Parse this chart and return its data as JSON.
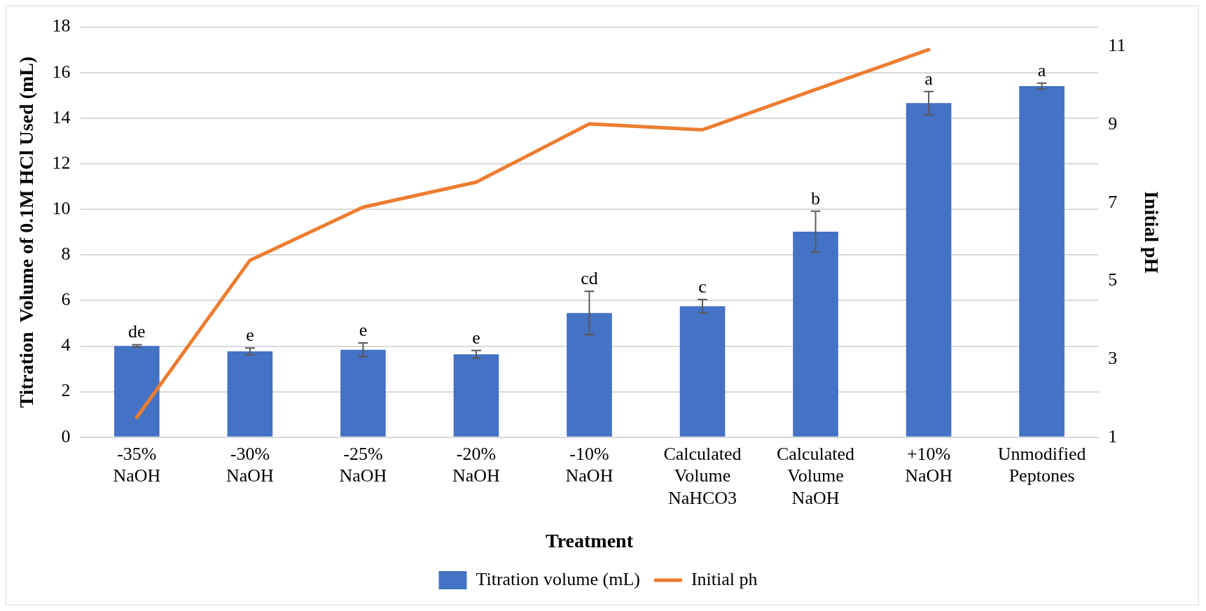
{
  "chart_data": {
    "type": "bar",
    "xlabel": "Treatment",
    "ylabel": "Titration  Volume of 0.1M HCl Used (mL)",
    "y2label": "Initial pH",
    "categories": [
      "-35% NaOH",
      "-30% NaOH",
      "-25% NaOH",
      "-20% NaOH",
      "-10% NaOH",
      "Calculated Volume NaHCO3",
      "Calculated Volume NaOH",
      "+10% NaOH",
      "Unmodified Peptones"
    ],
    "series": [
      {
        "name": "Titration volume (mL)",
        "color": "#4472c4",
        "values": [
          4.01,
          3.77,
          3.84,
          3.64,
          5.45,
          5.75,
          9.02,
          14.66,
          15.41
        ],
        "errors": [
          0.05,
          0.15,
          0.3,
          0.17,
          0.95,
          0.29,
          0.9,
          0.51,
          0.13
        ]
      },
      {
        "name": "Initial ph",
        "type": "line",
        "axis": "y2",
        "color": "#ed7d31",
        "values": [
          1.51,
          5.53,
          6.89,
          7.53,
          9.02,
          8.87,
          9.9,
          10.92,
          null
        ]
      }
    ],
    "ylim": [
      0,
      18
    ],
    "yticks": [
      0,
      2,
      4,
      6,
      8,
      10,
      12,
      14,
      16,
      18
    ],
    "y2lim": [
      1,
      11.5
    ],
    "y2ticks": [
      1,
      3,
      5,
      7,
      9,
      11
    ],
    "annotations": [
      {
        "text": "de",
        "x": "-35% NaOH",
        "y": 4.06
      },
      {
        "text": "e",
        "x": "-30% NaOH",
        "y": 3.92
      },
      {
        "text": "e",
        "x": "-25% NaOH",
        "y": 4.14
      },
      {
        "text": "e",
        "x": "-20% NaOH",
        "y": 3.81
      },
      {
        "text": "cd",
        "x": "-10% NaOH",
        "y": 6.4
      },
      {
        "text": "c",
        "x": "Calculated Volume NaHCO3",
        "y": 6.04
      },
      {
        "text": "b",
        "x": "Calculated Volume NaOH",
        "y": 9.92
      },
      {
        "text": "a",
        "x": "+10% NaOH",
        "y": 15.17
      },
      {
        "text": "a",
        "x": "Unmodified Peptones",
        "y": 15.54
      }
    ],
    "grid": "y",
    "legend": "bottom",
    "marker": "none",
    "line_style": "solid"
  }
}
